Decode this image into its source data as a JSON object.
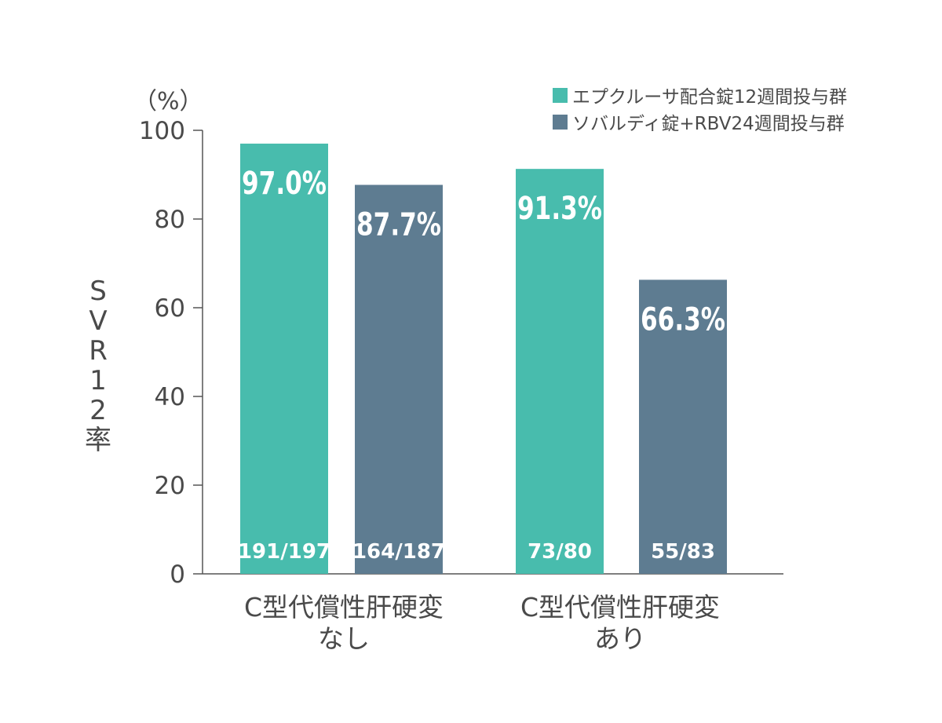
{
  "chart_data": {
    "type": "bar",
    "title": "",
    "unit_label": "（%）",
    "ylabel_chars": [
      "S",
      "V",
      "R",
      "1",
      "2",
      "率"
    ],
    "ylim": [
      0,
      100
    ],
    "yticks": [
      0,
      20,
      40,
      60,
      80,
      100
    ],
    "legend_position": "top-right",
    "categories": [
      {
        "line1": "C型代償性肝硬変",
        "line2": "なし"
      },
      {
        "line1": "C型代償性肝硬変",
        "line2": "あり"
      }
    ],
    "series": [
      {
        "name": "エプクルーサ配合錠12週間投与群",
        "color": "#48bcad",
        "values": [
          97.0,
          91.3
        ],
        "value_labels": [
          "97.0%",
          "91.3%"
        ],
        "count_labels": [
          "191/197",
          "73/80"
        ]
      },
      {
        "name": "ソバルディ錠+RBV24週間投与群",
        "color": "#5e7c91",
        "values": [
          87.7,
          66.3
        ],
        "value_labels": [
          "87.7%",
          "66.3%"
        ],
        "count_labels": [
          "164/187",
          "55/83"
        ]
      }
    ]
  }
}
